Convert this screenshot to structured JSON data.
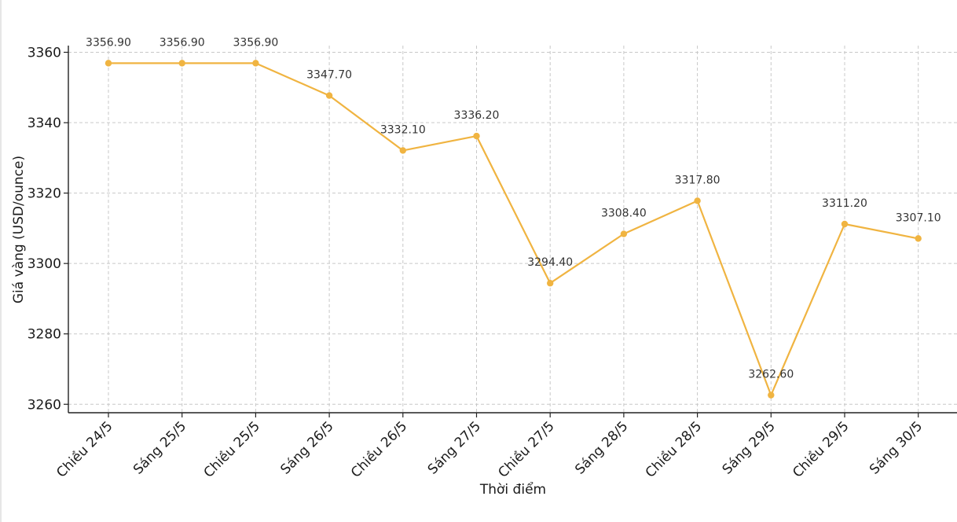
{
  "chart_data": {
    "type": "line",
    "xlabel": "Thời điểm",
    "ylabel": "Giá vàng (USD/ounce)",
    "categories": [
      "Chiều 24/5",
      "Sáng 25/5",
      "Chiều 25/5",
      "Sáng 26/5",
      "Chiều 26/5",
      "Sáng 27/5",
      "Chiều 27/5",
      "Sáng 28/5",
      "Chiều 28/5",
      "Sáng 29/5",
      "Chiều 29/5",
      "Sáng 30/5"
    ],
    "values": [
      3356.9,
      3356.9,
      3356.9,
      3347.7,
      3332.1,
      3336.2,
      3294.4,
      3308.4,
      3317.8,
      3262.6,
      3311.2,
      3307.1
    ],
    "value_labels": [
      "3356.90",
      "3356.90",
      "3356.90",
      "3347.70",
      "3332.10",
      "3336.20",
      "3294.40",
      "3308.40",
      "3317.80",
      "3262.60",
      "3311.20",
      "3307.10"
    ],
    "y_ticks": [
      3260,
      3280,
      3300,
      3320,
      3340,
      3360
    ],
    "ylim": [
      3257.6,
      3361.9
    ],
    "grid": true,
    "line_color": "#f0b441"
  }
}
